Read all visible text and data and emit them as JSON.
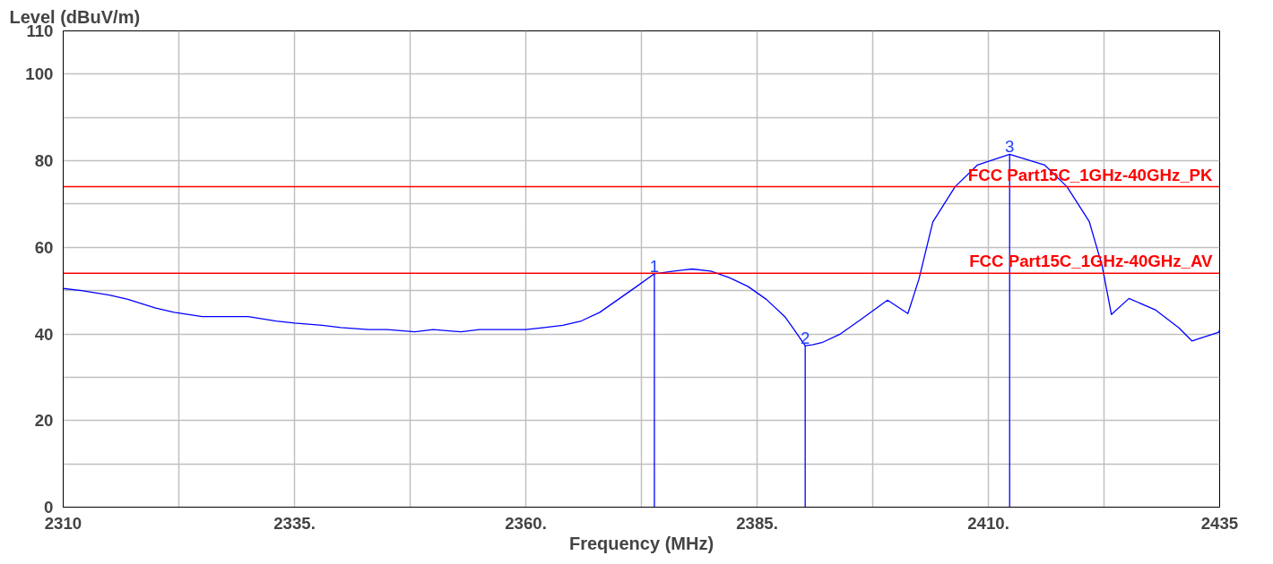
{
  "chart_data": {
    "type": "line",
    "ylabel": "Level (dBuV/m)",
    "xlabel": "Frequency (MHz)",
    "xlim": [
      2310,
      2435
    ],
    "ylim": [
      0,
      110
    ],
    "xticks": [
      {
        "value": 2310,
        "label": "2310"
      },
      {
        "value": 2322.5,
        "label": null
      },
      {
        "value": 2335,
        "label": "2335."
      },
      {
        "value": 2347.5,
        "label": null
      },
      {
        "value": 2360,
        "label": "2360."
      },
      {
        "value": 2372.5,
        "label": null
      },
      {
        "value": 2385,
        "label": "2385."
      },
      {
        "value": 2397.5,
        "label": null
      },
      {
        "value": 2410,
        "label": "2410."
      },
      {
        "value": 2422.5,
        "label": null
      },
      {
        "value": 2435,
        "label": "2435"
      }
    ],
    "yticks": [
      0,
      {
        "value": 10,
        "label": null
      },
      20,
      {
        "value": 30,
        "label": null
      },
      40,
      {
        "value": 50,
        "label": null
      },
      60,
      {
        "value": 70,
        "label": null
      },
      80,
      {
        "value": 90,
        "label": null
      },
      100,
      110
    ],
    "grid": true,
    "line_style": "solid",
    "series": [
      {
        "color": "#0000ff",
        "x": [
          2310,
          2312,
          2315,
          2317,
          2320,
          2322,
          2325,
          2328,
          2330,
          2333,
          2335,
          2338,
          2340,
          2343,
          2345,
          2348,
          2350,
          2353,
          2355,
          2358,
          2360,
          2362,
          2364,
          2366,
          2368,
          2370,
          2372,
          2373.9,
          2376,
          2378,
          2380,
          2382,
          2384,
          2386,
          2388,
          2389,
          2390.2,
          2391,
          2392,
          2394,
          2396,
          2399.1,
          2401.3,
          2402.5,
          2404,
          2406.4,
          2408.8,
          2412.3,
          2416.1,
          2418.5,
          2420.9,
          2422.3,
          2423.3,
          2425.2,
          2428.1,
          2430.6,
          2432,
          2434.9,
          2435
        ],
        "values": [
          50.5,
          50,
          49,
          48,
          46,
          45,
          44,
          44,
          44,
          43,
          42.5,
          42,
          41.5,
          41,
          41,
          40.5,
          41,
          40.5,
          41,
          41,
          41,
          41.5,
          42,
          43,
          45,
          48,
          51,
          53.9,
          54.5,
          55,
          54.5,
          53,
          51,
          48,
          44,
          41,
          37.3,
          37.5,
          38,
          40,
          43,
          47.8,
          44.7,
          52.7,
          65.9,
          74,
          79,
          81.5,
          79,
          74,
          66,
          55.7,
          44.5,
          48.2,
          45.5,
          41.4,
          38.4,
          40.4,
          41
        ]
      }
    ],
    "ref_lines": [
      {
        "axis": "y",
        "value": 74,
        "label": "FCC Part15C_1GHz-40GHz_PK",
        "color": "#ff0000"
      },
      {
        "axis": "y",
        "value": 54,
        "label": "FCC Part15C_1GHz-40GHz_AV",
        "color": "#ff0000"
      }
    ],
    "annotations": [
      {
        "text": "1",
        "x": 2373.9,
        "y": 53.9
      },
      {
        "text": "2",
        "x": 2390.2,
        "y": 37.3
      },
      {
        "text": "3",
        "x": 2412.3,
        "y": 81.5
      }
    ]
  }
}
